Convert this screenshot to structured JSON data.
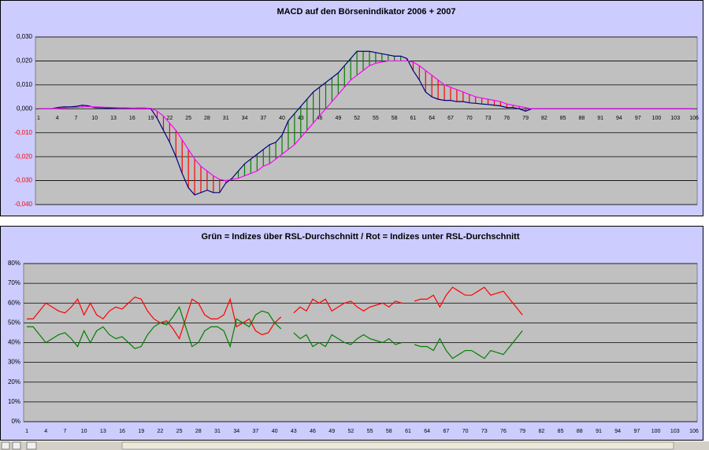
{
  "chart_data": [
    {
      "type": "line",
      "title": "MACD auf den Börsenindikator 2006 + 2007",
      "categories": [
        1,
        null,
        null,
        4,
        null,
        null,
        7,
        null,
        null,
        10,
        null,
        null,
        13,
        null,
        null,
        16,
        null,
        null,
        19,
        null,
        null,
        22,
        null,
        null,
        25,
        null,
        null,
        28,
        null,
        null,
        31,
        null,
        null,
        34,
        null,
        null,
        37,
        null,
        null,
        40,
        null,
        null,
        43,
        null,
        null,
        46,
        null,
        null,
        49,
        null,
        null,
        52,
        null,
        null,
        55,
        null,
        null,
        58,
        null,
        null,
        61,
        null,
        null,
        64,
        null,
        null,
        67,
        null,
        null,
        70,
        null,
        null,
        73,
        null,
        null,
        76,
        null,
        null,
        79,
        null,
        null,
        82,
        null,
        null,
        85,
        null,
        null,
        88,
        null,
        null,
        91,
        null,
        null,
        94,
        null,
        null,
        97,
        null,
        null,
        100,
        null,
        null,
        103,
        null,
        null,
        106
      ],
      "series": [
        {
          "color": "#000080",
          "values": [
            0,
            0,
            0,
            0.0005,
            0.0008,
            0.0008,
            0.001,
            0.0015,
            0.0012,
            0.0005,
            0.0004,
            0.0003,
            0.0003,
            0.0002,
            0.0002,
            0.0002,
            0.0003,
            0.0003,
            0,
            -0.004,
            -0.009,
            -0.014,
            -0.02,
            -0.027,
            -0.033,
            -0.036,
            -0.035,
            -0.034,
            -0.035,
            -0.035,
            -0.031,
            -0.029,
            -0.026,
            -0.023,
            -0.021,
            -0.019,
            -0.017,
            -0.015,
            -0.014,
            -0.011,
            -0.005,
            -0.002,
            0.001,
            0.004,
            0.007,
            0.009,
            0.011,
            0.013,
            0.015,
            0.018,
            0.021,
            0.024,
            0.024,
            0.024,
            0.0235,
            0.023,
            0.0225,
            0.022,
            0.022,
            0.021,
            0.016,
            0.012,
            0.007,
            0.005,
            0.004,
            0.0035,
            0.0035,
            0.003,
            0.003,
            0.0025,
            0.0023,
            0.002,
            0.0018,
            0.0015,
            0.0012,
            0.0005,
            0.0005,
            0,
            -0.001,
            0,
            0,
            0,
            0,
            0,
            0,
            0,
            0,
            0,
            0,
            0,
            0,
            0,
            0,
            0,
            0,
            0,
            0,
            0,
            0,
            0,
            0,
            0,
            0,
            0,
            0,
            0
          ]
        },
        {
          "color": "#ff00ff",
          "values": [
            0,
            0,
            0,
            0.0002,
            0.0004,
            0.0005,
            0.0006,
            0.0008,
            0.0009,
            0.0008,
            0.0007,
            0.0006,
            0.0005,
            0.0004,
            0.0004,
            0.0003,
            0.0003,
            0.0003,
            0.0002,
            -0.001,
            -0.003,
            -0.006,
            -0.009,
            -0.013,
            -0.017,
            -0.021,
            -0.024,
            -0.026,
            -0.028,
            -0.0295,
            -0.03,
            -0.0295,
            -0.029,
            -0.028,
            -0.027,
            -0.026,
            -0.024,
            -0.023,
            -0.021,
            -0.019,
            -0.017,
            -0.015,
            -0.012,
            -0.009,
            -0.006,
            -0.003,
            0,
            0.003,
            0.006,
            0.009,
            0.012,
            0.014,
            0.016,
            0.018,
            0.019,
            0.0195,
            0.02,
            0.02,
            0.02,
            0.02,
            0.0195,
            0.018,
            0.016,
            0.014,
            0.012,
            0.01,
            0.009,
            0.008,
            0.007,
            0.006,
            0.005,
            0.0045,
            0.004,
            0.0035,
            0.003,
            0.002,
            0.0015,
            0.001,
            0.0005,
            0,
            0,
            0,
            0,
            0,
            0,
            0,
            0,
            0,
            0,
            0,
            0,
            0,
            0,
            0,
            0,
            0,
            0,
            0,
            0,
            0,
            0,
            0,
            0,
            0,
            0,
            0
          ]
        }
      ],
      "up_color": "#008000",
      "down_color": "#ff0000",
      "ylim": [
        -0.04,
        0.03
      ],
      "yticks": [
        {
          "value": -0.04,
          "label": "-0,040"
        },
        {
          "value": -0.03,
          "label": "-0,030"
        },
        {
          "value": -0.02,
          "label": "-0,020"
        },
        {
          "value": -0.01,
          "label": "-0,010"
        },
        {
          "value": 0,
          "label": "0,000"
        },
        {
          "value": 0.01,
          "label": "0,010"
        },
        {
          "value": 0.02,
          "label": "0,020"
        },
        {
          "value": 0.03,
          "label": "0,030"
        }
      ],
      "grid": true
    },
    {
      "type": "line",
      "title": "Grün = Indizes über RSL-Durchschnitt / Rot = Indizes unter RSL-Durchschnitt",
      "categories": [
        1,
        null,
        null,
        4,
        null,
        null,
        7,
        null,
        null,
        10,
        null,
        null,
        13,
        null,
        null,
        16,
        null,
        null,
        19,
        null,
        null,
        22,
        null,
        null,
        25,
        null,
        null,
        28,
        null,
        null,
        31,
        null,
        null,
        34,
        null,
        null,
        37,
        null,
        null,
        40,
        null,
        null,
        43,
        null,
        null,
        46,
        null,
        null,
        49,
        null,
        null,
        52,
        null,
        null,
        55,
        null,
        null,
        58,
        null,
        null,
        61,
        null,
        null,
        64,
        null,
        null,
        67,
        null,
        null,
        70,
        null,
        null,
        73,
        null,
        null,
        76,
        null,
        null,
        79,
        null,
        null,
        82,
        null,
        null,
        85,
        null,
        null,
        88,
        null,
        null,
        91,
        null,
        null,
        94,
        null,
        null,
        97,
        null,
        null,
        100,
        null,
        null,
        103,
        null,
        null,
        106
      ],
      "series": [
        {
          "color": "#ff0000",
          "values": [
            52,
            52,
            56,
            60,
            58,
            56,
            55,
            58,
            62,
            54,
            60,
            54,
            52,
            56,
            58,
            57,
            60,
            63,
            62,
            56,
            52,
            50,
            51,
            47,
            42,
            52,
            62,
            60,
            54,
            52,
            52,
            54,
            62,
            48,
            50,
            52,
            46,
            44,
            45,
            50,
            53,
            null,
            55,
            58,
            56,
            62,
            60,
            62,
            56,
            58,
            60,
            61,
            58,
            56,
            58,
            59,
            60,
            58,
            61,
            60,
            null,
            61,
            62,
            62,
            64,
            58,
            64,
            68,
            66,
            64,
            64,
            66,
            68,
            64,
            65,
            66,
            62,
            58,
            54,
            null,
            null,
            null,
            null,
            null,
            null,
            null,
            null,
            null,
            null,
            null,
            null,
            null,
            null,
            null,
            null,
            null,
            null,
            null,
            null,
            null,
            null,
            null,
            null,
            null,
            null,
            null
          ]
        },
        {
          "color": "#008000",
          "values": [
            48,
            48,
            44,
            40,
            42,
            44,
            45,
            42,
            38,
            46,
            40,
            46,
            48,
            44,
            42,
            43,
            40,
            37,
            38,
            44,
            48,
            50,
            49,
            53,
            58,
            48,
            38,
            40,
            46,
            48,
            48,
            46,
            38,
            52,
            50,
            48,
            54,
            56,
            55,
            50,
            47,
            null,
            45,
            42,
            44,
            38,
            40,
            38,
            44,
            42,
            40,
            39,
            42,
            44,
            42,
            41,
            40,
            42,
            39,
            40,
            null,
            39,
            38,
            38,
            36,
            42,
            36,
            32,
            34,
            36,
            36,
            34,
            32,
            36,
            35,
            34,
            38,
            42,
            46,
            null,
            null,
            null,
            null,
            null,
            null,
            null,
            null,
            null,
            null,
            null,
            null,
            null,
            null,
            null,
            null,
            null,
            null,
            null,
            null,
            null,
            null,
            null,
            null,
            null,
            null,
            null
          ]
        }
      ],
      "ylim": [
        0,
        80
      ],
      "yticks": [
        {
          "value": 0,
          "label": "0%"
        },
        {
          "value": 10,
          "label": "10%"
        },
        {
          "value": 20,
          "label": "20%"
        },
        {
          "value": 30,
          "label": "30%"
        },
        {
          "value": 40,
          "label": "40%"
        },
        {
          "value": 50,
          "label": "50%"
        },
        {
          "value": 60,
          "label": "60%"
        },
        {
          "value": 70,
          "label": "70%"
        },
        {
          "value": 80,
          "label": "80%"
        }
      ],
      "grid": true
    }
  ]
}
